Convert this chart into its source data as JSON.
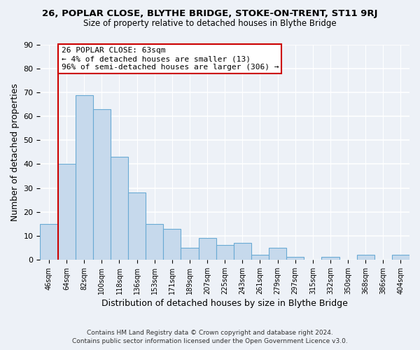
{
  "title_line1": "26, POPLAR CLOSE, BLYTHE BRIDGE, STOKE-ON-TRENT, ST11 9RJ",
  "title_line2": "Size of property relative to detached houses in Blythe Bridge",
  "xlabel": "Distribution of detached houses by size in Blythe Bridge",
  "ylabel": "Number of detached properties",
  "categories": [
    "46sqm",
    "64sqm",
    "82sqm",
    "100sqm",
    "118sqm",
    "136sqm",
    "153sqm",
    "171sqm",
    "189sqm",
    "207sqm",
    "225sqm",
    "243sqm",
    "261sqm",
    "279sqm",
    "297sqm",
    "315sqm",
    "332sqm",
    "350sqm",
    "368sqm",
    "386sqm",
    "404sqm"
  ],
  "values": [
    15,
    40,
    69,
    63,
    43,
    28,
    15,
    13,
    5,
    9,
    6,
    7,
    2,
    5,
    1,
    0,
    1,
    0,
    2,
    0,
    2
  ],
  "bar_color": "#c6d9ec",
  "bar_edge_color": "#6aaad4",
  "ylim": [
    0,
    90
  ],
  "yticks": [
    0,
    10,
    20,
    30,
    40,
    50,
    60,
    70,
    80,
    90
  ],
  "annotation_text_line1": "26 POPLAR CLOSE: 63sqm",
  "annotation_text_line2": "← 4% of detached houses are smaller (13)",
  "annotation_text_line3": "96% of semi-detached houses are larger (306) →",
  "annotation_box_facecolor": "#ffffff",
  "annotation_box_edgecolor": "#cc0000",
  "property_line_color": "#cc0000",
  "footer_line1": "Contains HM Land Registry data © Crown copyright and database right 2024.",
  "footer_line2": "Contains public sector information licensed under the Open Government Licence v3.0.",
  "background_color": "#edf1f7",
  "fig_background_color": "#edf1f7",
  "property_line_x": 0.5
}
